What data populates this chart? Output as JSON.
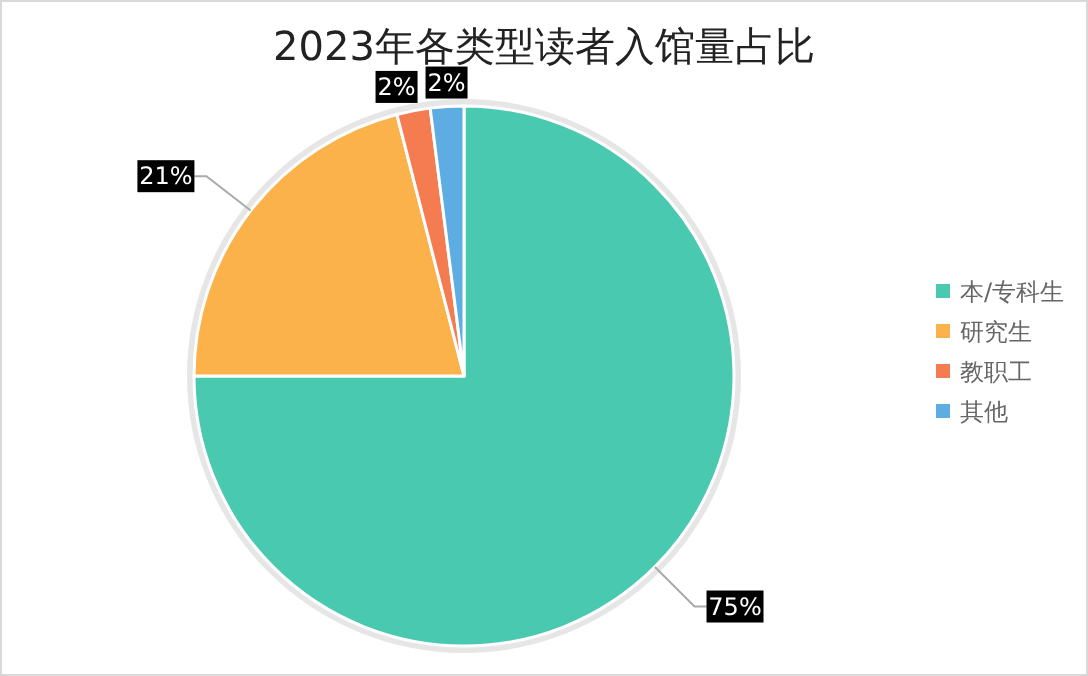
{
  "chart_data": {
    "type": "pie",
    "title": "2023年各类型读者入馆量占比",
    "categories": [
      "本/专科生",
      "研究生",
      "教职工",
      "其他"
    ],
    "values": [
      75,
      21,
      2,
      2
    ],
    "colors": [
      "#48c9b0",
      "#fbb24a",
      "#f57b51",
      "#5dade2"
    ],
    "value_labels": [
      "75%",
      "21%",
      "2%",
      "2%"
    ],
    "legend": "right"
  }
}
